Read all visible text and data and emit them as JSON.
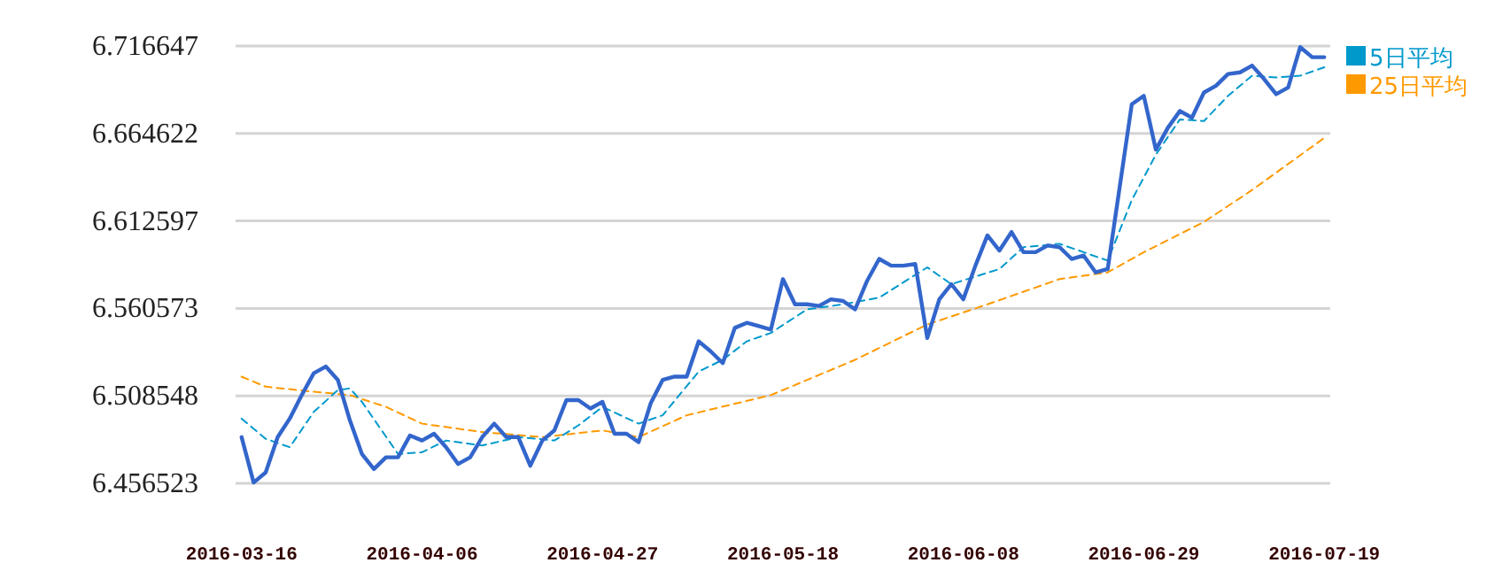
{
  "chart_data": {
    "type": "line",
    "categories": [
      "2016-03-16",
      null,
      null,
      null,
      null,
      null,
      null,
      null,
      null,
      null,
      null,
      null,
      null,
      null,
      null,
      "2016-04-06",
      null,
      null,
      null,
      null,
      null,
      null,
      null,
      null,
      null,
      null,
      null,
      null,
      null,
      null,
      "2016-04-27",
      null,
      null,
      null,
      null,
      null,
      null,
      null,
      null,
      null,
      null,
      null,
      null,
      null,
      null,
      "2016-05-18",
      null,
      null,
      null,
      null,
      null,
      null,
      null,
      null,
      null,
      null,
      null,
      null,
      null,
      null,
      "2016-06-08",
      null,
      null,
      null,
      null,
      null,
      null,
      null,
      null,
      null,
      null,
      null,
      null,
      null,
      null,
      "2016-06-29",
      null,
      null,
      null,
      null,
      null,
      null,
      null,
      null,
      null,
      null,
      null,
      null,
      null,
      null,
      "2016-07-19"
    ],
    "series": [
      {
        "color": "#3366cc",
        "line_style": "solid",
        "values": [
          6.484,
          6.457,
          6.463,
          6.484,
          6.495,
          6.509,
          6.522,
          6.526,
          6.518,
          6.494,
          6.474,
          6.465,
          6.472,
          6.472,
          6.485,
          6.482,
          6.486,
          6.478,
          6.468,
          6.472,
          6.484,
          6.492,
          6.484,
          6.484,
          6.467,
          6.482,
          6.488,
          6.506,
          6.506,
          6.501,
          6.505,
          6.486,
          6.486,
          6.481,
          6.504,
          6.518,
          6.52,
          6.52,
          6.541,
          6.535,
          6.528,
          6.549,
          6.552,
          6.55,
          6.548,
          6.578,
          6.563,
          6.563,
          6.562,
          6.566,
          6.565,
          6.56,
          6.577,
          6.59,
          6.586,
          6.586,
          6.587,
          6.543,
          6.566,
          6.575,
          6.566,
          6.586,
          6.604,
          6.595,
          6.606,
          6.594,
          6.594,
          6.598,
          6.597,
          6.59,
          6.592,
          6.582,
          6.584,
          6.633,
          6.682,
          6.687,
          6.655,
          6.668,
          6.678,
          6.674,
          6.689,
          6.693,
          6.7,
          6.701,
          6.705,
          6.697,
          6.688,
          6.692,
          6.716,
          6.71,
          6.71
        ]
      },
      {
        "name": "5日平均",
        "color": "#0099cc",
        "line_style": "dashed",
        "values": [
          6.495,
          null,
          6.483,
          null,
          6.478,
          null,
          6.499,
          null,
          6.512,
          6.513,
          6.505,
          null,
          null,
          6.474,
          null,
          6.475,
          null,
          6.482,
          null,
          null,
          6.479,
          null,
          null,
          6.484,
          null,
          null,
          6.482,
          null,
          6.491,
          null,
          6.502,
          null,
          null,
          6.492,
          null,
          6.497,
          null,
          null,
          6.523,
          null,
          6.53,
          null,
          6.541,
          null,
          6.546,
          null,
          null,
          6.56,
          null,
          null,
          6.563,
          null,
          null,
          6.567,
          null,
          null,
          null,
          6.585,
          null,
          6.575,
          null,
          null,
          null,
          6.584,
          null,
          6.597,
          null,
          null,
          6.599,
          null,
          6.594,
          null,
          6.589,
          null,
          6.625,
          null,
          6.652,
          null,
          6.673,
          null,
          6.672,
          null,
          6.687,
          null,
          6.699,
          null,
          6.698,
          null,
          6.699,
          null,
          6.704
        ]
      },
      {
        "name": "25日平均",
        "color": "#ff9900",
        "line_style": "dashed",
        "values": [
          6.52,
          null,
          6.514,
          null,
          null,
          null,
          6.511,
          null,
          null,
          6.509,
          null,
          null,
          6.502,
          null,
          null,
          6.492,
          null,
          null,
          null,
          null,
          6.487,
          null,
          null,
          null,
          null,
          6.484,
          null,
          null,
          null,
          null,
          6.488,
          null,
          null,
          6.484,
          null,
          null,
          null,
          6.497,
          null,
          null,
          null,
          null,
          null,
          null,
          6.509,
          null,
          null,
          null,
          null,
          null,
          null,
          6.53,
          null,
          null,
          null,
          null,
          null,
          6.551,
          null,
          null,
          null,
          null,
          6.563,
          null,
          null,
          null,
          null,
          null,
          6.578,
          null,
          null,
          null,
          6.582,
          null,
          null,
          6.594,
          null,
          null,
          null,
          null,
          6.612,
          null,
          null,
          null,
          6.631,
          null,
          null,
          null,
          null,
          null,
          6.662
        ]
      }
    ],
    "ylim": [
      6.456523,
      6.716647
    ],
    "yticks": [
      6.456523,
      6.508548,
      6.560573,
      6.612597,
      6.664622,
      6.716647
    ],
    "grid": "y",
    "legend": "top right"
  }
}
